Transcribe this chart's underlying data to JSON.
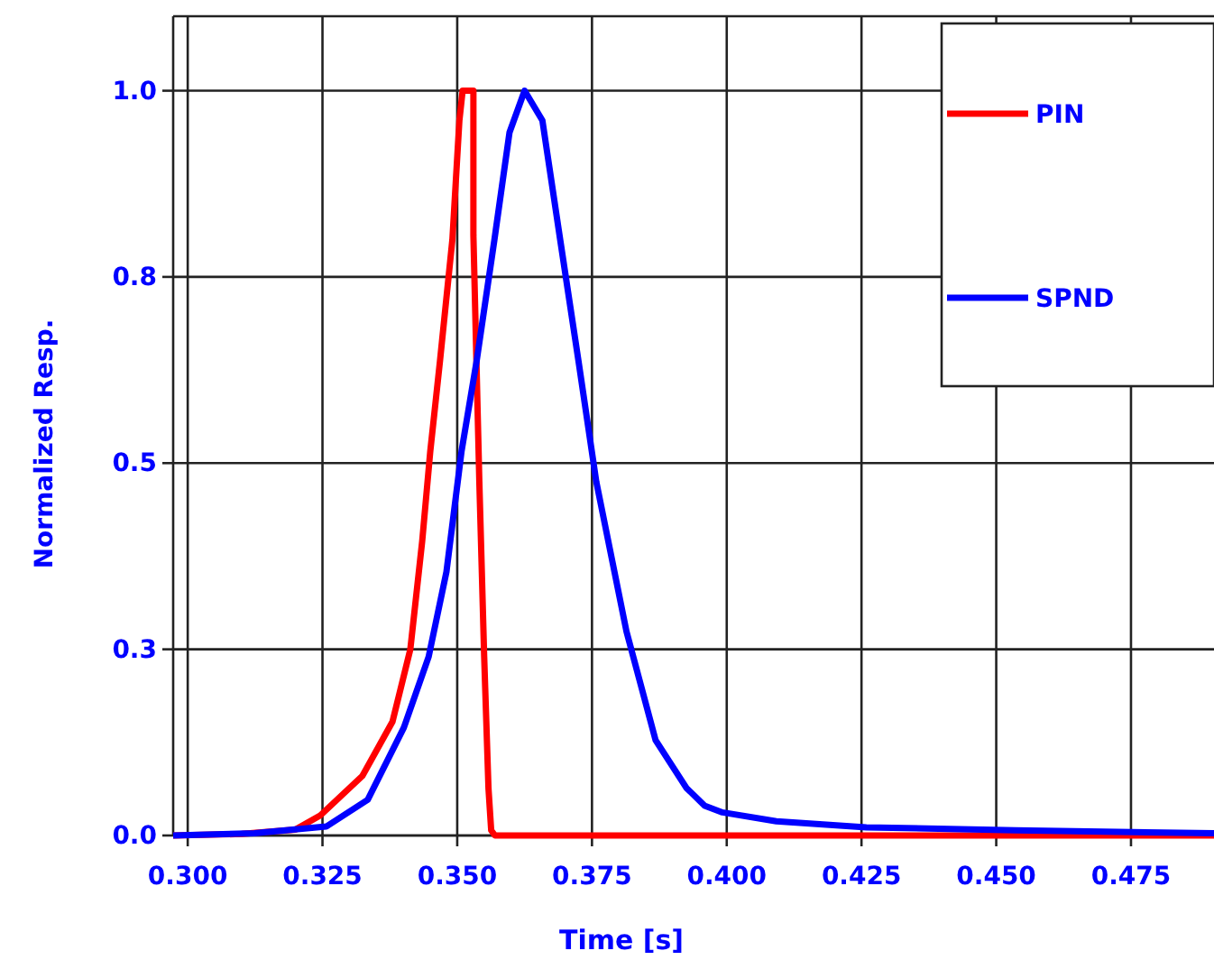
{
  "chart_data": {
    "type": "line",
    "xlabel": "Time [s]",
    "ylabel": "Normalized Resp.",
    "xlim": [
      0.2973,
      0.4904
    ],
    "ylim": [
      0,
      1.1
    ],
    "xticks": [
      {
        "value": 0.3,
        "label": "0.300"
      },
      {
        "value": 0.325,
        "label": "0.325"
      },
      {
        "value": 0.35,
        "label": "0.350"
      },
      {
        "value": 0.375,
        "label": "0.375"
      },
      {
        "value": 0.4,
        "label": "0.400"
      },
      {
        "value": 0.425,
        "label": "0.425"
      },
      {
        "value": 0.45,
        "label": "0.450"
      },
      {
        "value": 0.475,
        "label": "0.475"
      }
    ],
    "yticks": [
      {
        "value": 0,
        "label": "0.0"
      },
      {
        "value": 0.25,
        "label": "0.3"
      },
      {
        "value": 0.5,
        "label": "0.5"
      },
      {
        "value": 0.75,
        "label": "0.8"
      },
      {
        "value": 1,
        "label": "1.0"
      }
    ],
    "grid": true,
    "legend": "top right",
    "line_style": "solid",
    "marker": "none",
    "series": [
      {
        "name": "PIN",
        "color": "#ff0000",
        "x": [
          0.2973,
          0.31,
          0.32,
          0.3246,
          0.3324,
          0.338,
          0.3413,
          0.3435,
          0.345,
          0.3468,
          0.3491,
          0.3504,
          0.351,
          0.353,
          0.353,
          0.3541,
          0.355,
          0.3558,
          0.3563,
          0.357,
          0.4,
          0.45,
          0.4904
        ],
        "values": [
          0,
          0.002,
          0.008,
          0.027,
          0.08,
          0.153,
          0.25,
          0.395,
          0.516,
          0.637,
          0.8,
          0.96,
          1.0,
          1.0,
          0.806,
          0.475,
          0.24,
          0.063,
          0.007,
          0,
          0,
          0,
          0
        ]
      },
      {
        "name": "SPND",
        "color": "#0000ff",
        "x": [
          0.2973,
          0.3124,
          0.3257,
          0.3334,
          0.3401,
          0.3447,
          0.348,
          0.3508,
          0.3536,
          0.3569,
          0.3597,
          0.3625,
          0.3658,
          0.3691,
          0.3725,
          0.3758,
          0.3814,
          0.3868,
          0.3925,
          0.3959,
          0.3992,
          0.4092,
          0.4259,
          0.4536,
          0.4904
        ],
        "values": [
          0,
          0.003,
          0.012,
          0.048,
          0.145,
          0.24,
          0.354,
          0.516,
          0.637,
          0.8,
          0.944,
          1.0,
          0.96,
          0.8,
          0.637,
          0.475,
          0.274,
          0.128,
          0.064,
          0.04,
          0.031,
          0.019,
          0.011,
          0.007,
          0.003
        ]
      }
    ]
  }
}
